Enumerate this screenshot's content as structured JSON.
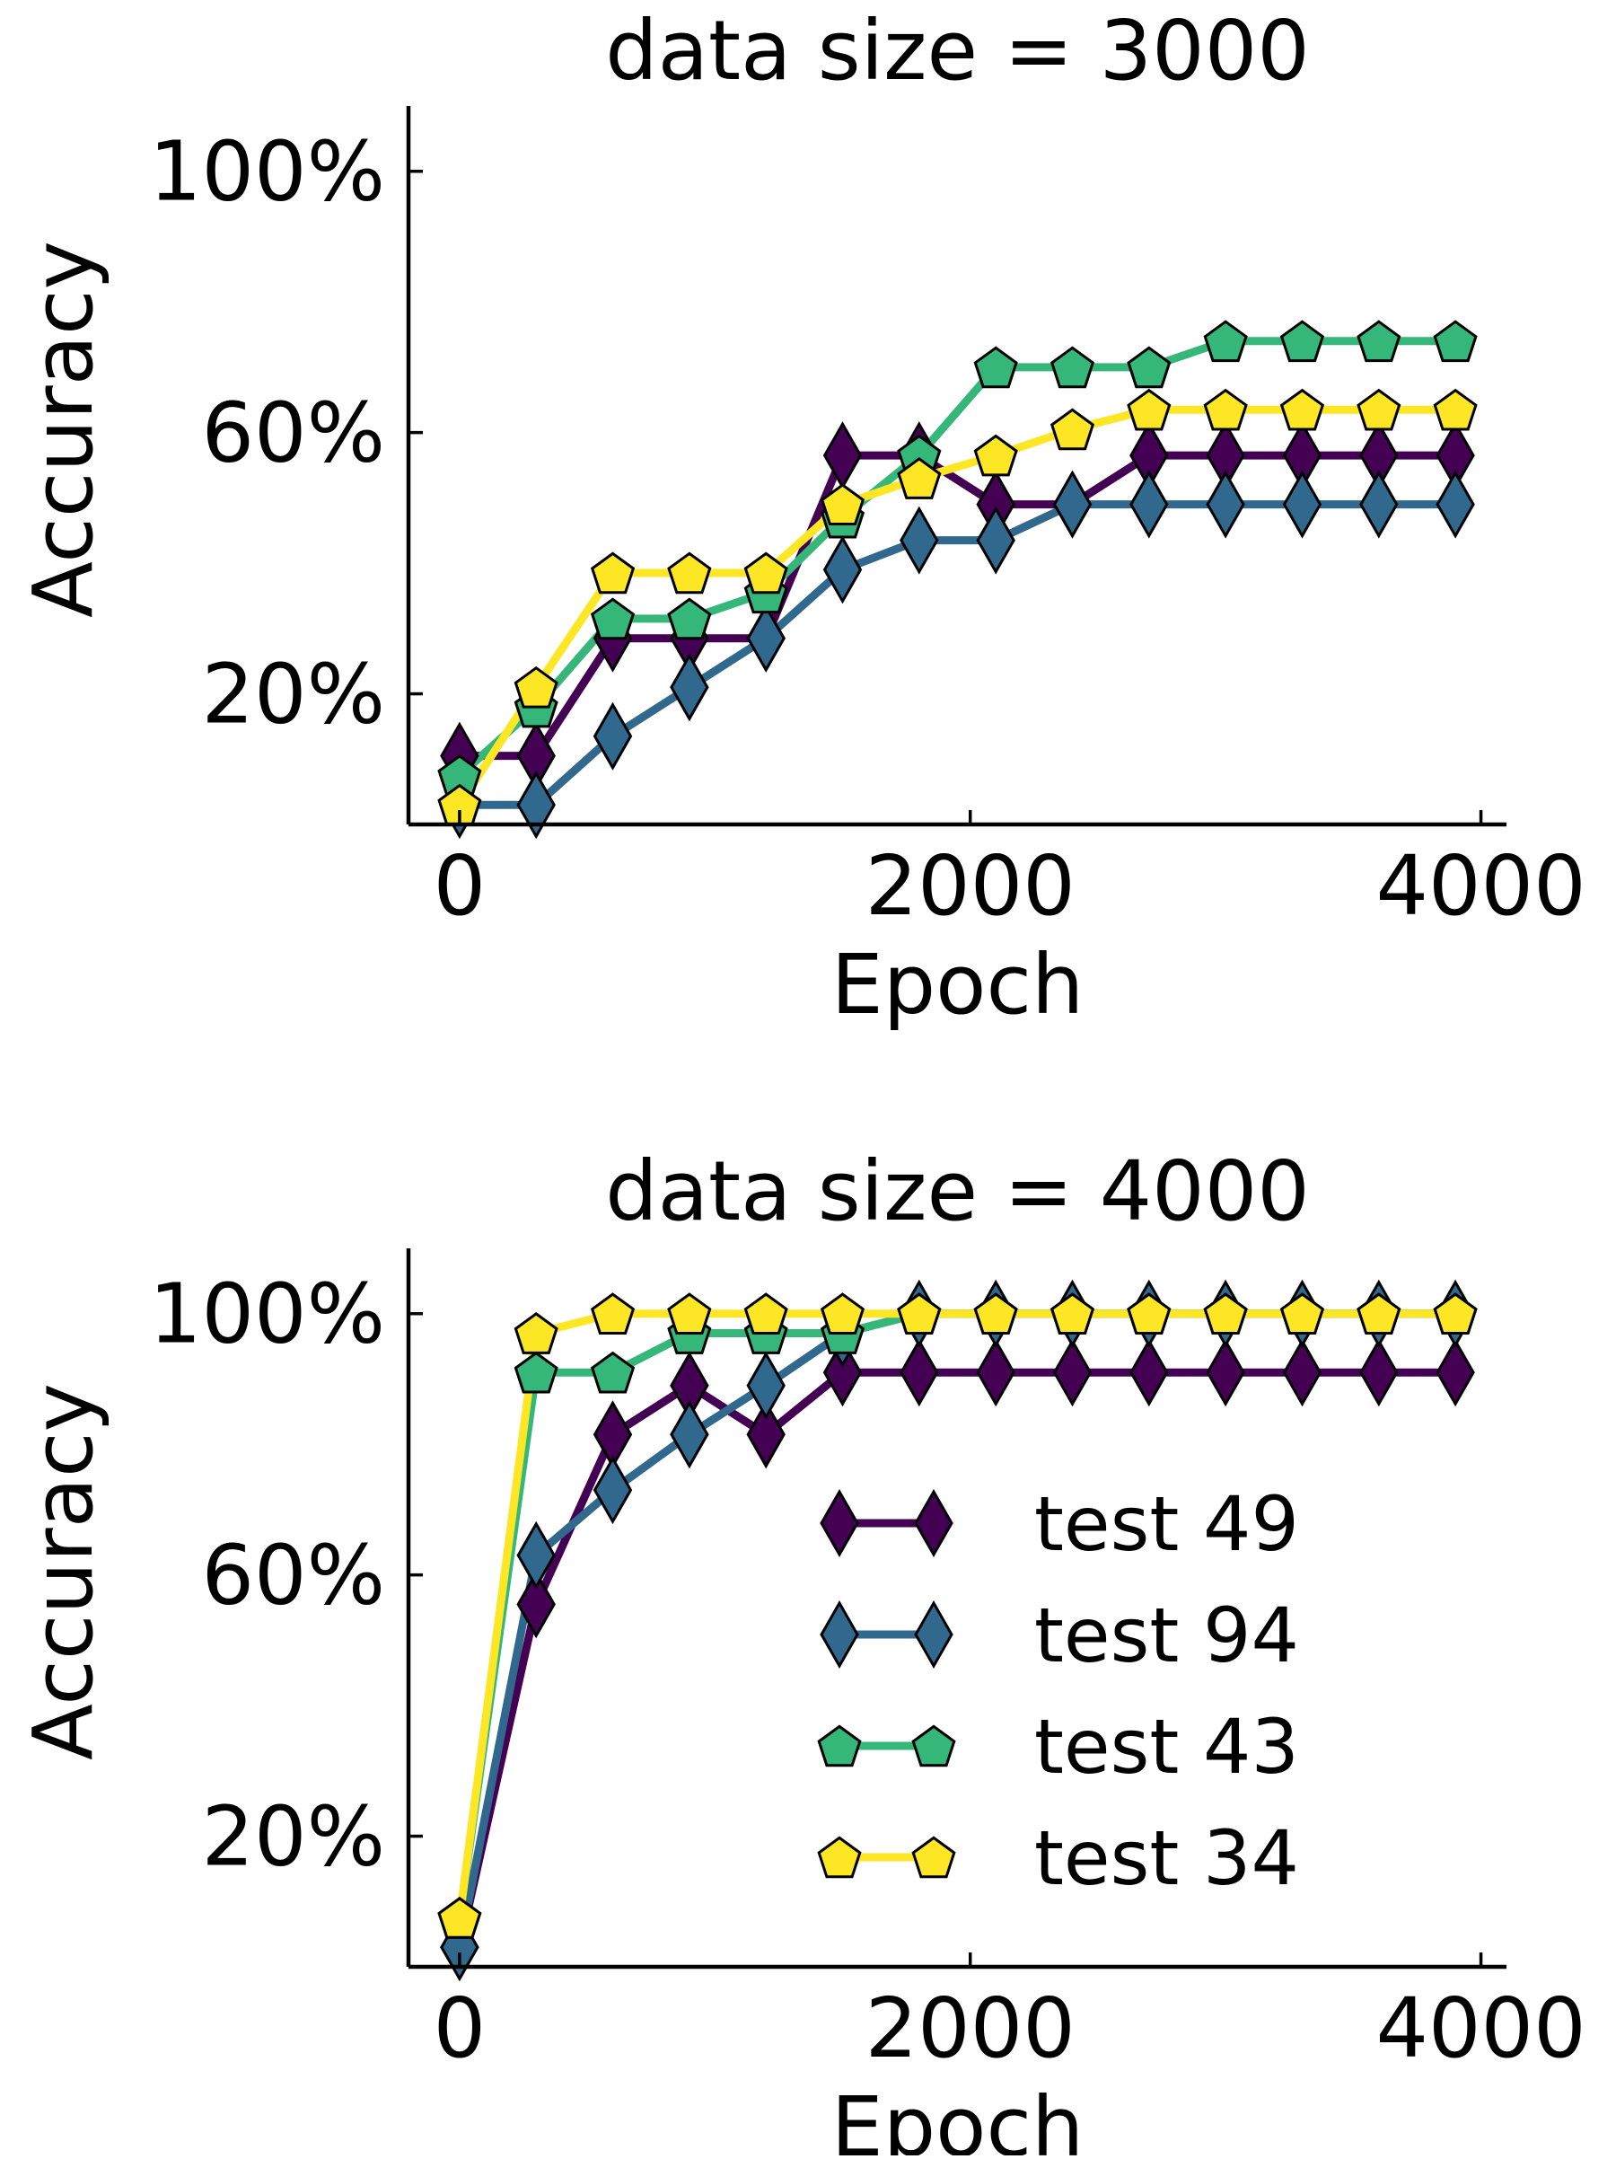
{
  "chart_data": [
    {
      "type": "line",
      "title": "data size = 3000",
      "xlabel": "Epoch",
      "ylabel": "Accuracy",
      "xlim": [
        -200,
        4100
      ],
      "ylim": [
        0,
        110
      ],
      "xticks": [
        0,
        2000,
        4000
      ],
      "xtick_labels": [
        "0",
        "2000",
        "4000"
      ],
      "yticks": [
        20,
        60,
        100
      ],
      "ytick_labels": [
        "20%",
        "60%",
        "100%"
      ],
      "grid": false,
      "legend": null,
      "x": [
        0,
        300,
        600,
        900,
        1200,
        1500,
        1800,
        2100,
        2400,
        2700,
        3000,
        3300,
        3600,
        3900
      ],
      "series": [
        {
          "name": "test 49",
          "color": "#440154",
          "marker": "diamond",
          "values": [
            10.5,
            10.5,
            28.5,
            28.5,
            28.5,
            56.5,
            56.5,
            49.0,
            49.0,
            56.5,
            56.5,
            56.5,
            56.5,
            56.5
          ]
        },
        {
          "name": "test 94",
          "color": "#31688e",
          "marker": "diamond",
          "values": [
            3.0,
            3.0,
            13.5,
            21.0,
            28.5,
            39.0,
            43.5,
            43.5,
            49.0,
            49.0,
            49.0,
            49.0,
            49.0,
            49.0
          ]
        },
        {
          "name": "test 43",
          "color": "#35b779",
          "marker": "pentagon",
          "values": [
            7.5,
            18.0,
            31.5,
            31.5,
            35.5,
            47.0,
            56.5,
            70.0,
            70.0,
            70.0,
            74.0,
            74.0,
            74.0,
            74.0
          ]
        },
        {
          "name": "test 34",
          "color": "#fde725",
          "marker": "pentagon",
          "values": [
            3.0,
            21.0,
            38.5,
            38.5,
            38.5,
            49.0,
            53.0,
            56.5,
            60.5,
            63.5,
            63.5,
            63.5,
            63.5,
            63.5
          ]
        }
      ]
    },
    {
      "type": "line",
      "title": "data size = 4000",
      "xlabel": "Epoch",
      "ylabel": "Accuracy",
      "xlim": [
        -200,
        4100
      ],
      "ylim": [
        0,
        110
      ],
      "xticks": [
        0,
        2000,
        4000
      ],
      "xtick_labels": [
        "0",
        "2000",
        "4000"
      ],
      "yticks": [
        20,
        60,
        100
      ],
      "ytick_labels": [
        "20%",
        "60%",
        "100%"
      ],
      "grid": false,
      "legend": "lower-right",
      "x": [
        0,
        300,
        600,
        900,
        1200,
        1500,
        1800,
        2100,
        2400,
        2700,
        3000,
        3300,
        3600,
        3900
      ],
      "series": [
        {
          "name": "test 49",
          "color": "#440154",
          "marker": "diamond",
          "values": [
            3.0,
            55.5,
            81.5,
            89.0,
            81.5,
            91.0,
            91.0,
            91.0,
            91.0,
            91.0,
            91.0,
            91.0,
            91.0,
            91.0
          ]
        },
        {
          "name": "test 94",
          "color": "#31688e",
          "marker": "diamond",
          "values": [
            3.0,
            63.0,
            73.0,
            81.5,
            89.0,
            97.0,
            100.0,
            100.0,
            100.0,
            100.0,
            100.0,
            100.0,
            100.0,
            100.0
          ]
        },
        {
          "name": "test 43",
          "color": "#35b779",
          "marker": "pentagon",
          "values": [
            7.5,
            91.0,
            91.0,
            97.0,
            97.0,
            97.0,
            100.0,
            100.0,
            100.0,
            100.0,
            100.0,
            100.0,
            100.0,
            100.0
          ]
        },
        {
          "name": "test 34",
          "color": "#fde725",
          "marker": "pentagon",
          "values": [
            7.5,
            97.0,
            100.0,
            100.0,
            100.0,
            100.0,
            100.0,
            100.0,
            100.0,
            100.0,
            100.0,
            100.0,
            100.0,
            100.0
          ]
        }
      ]
    }
  ]
}
